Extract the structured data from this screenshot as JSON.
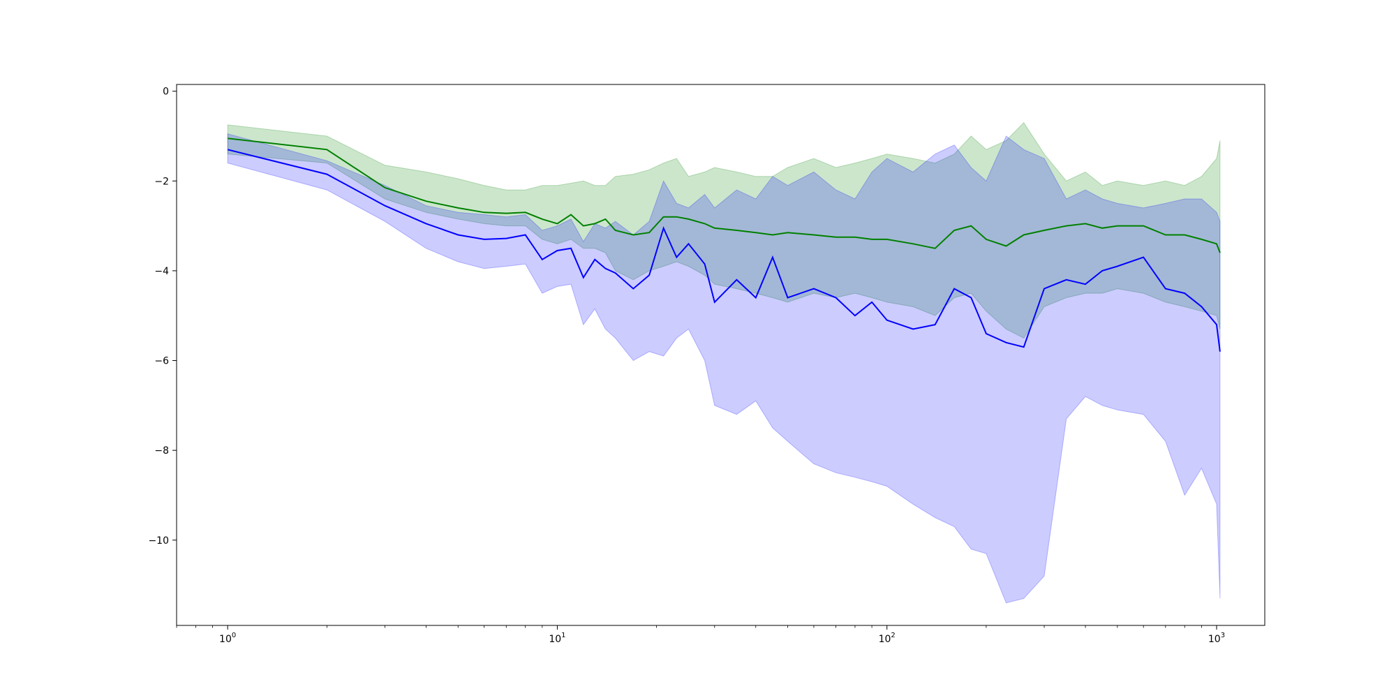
{
  "chart_data": {
    "type": "line",
    "title": "",
    "xlabel": "",
    "ylabel": "",
    "x_scale": "log",
    "xlim": [
      0.7,
      1400
    ],
    "ylim": [
      -11.9,
      0.15
    ],
    "grid": false,
    "legend": "none",
    "x_ticks": [
      {
        "value": 1,
        "base": "10",
        "exp": "0"
      },
      {
        "value": 10,
        "base": "10",
        "exp": "1"
      },
      {
        "value": 100,
        "base": "10",
        "exp": "2"
      },
      {
        "value": 1000,
        "base": "10",
        "exp": "3"
      }
    ],
    "y_ticks": [
      {
        "value": 0,
        "label": "0"
      },
      {
        "value": -2,
        "label": "−2"
      },
      {
        "value": -4,
        "label": "−4"
      },
      {
        "value": -6,
        "label": "−6"
      },
      {
        "value": -8,
        "label": "−8"
      },
      {
        "value": -10,
        "label": "−10"
      }
    ],
    "series": [
      {
        "color": "#008000",
        "band_color": "#008000",
        "x": [
          1,
          2,
          3,
          4,
          5,
          6,
          7,
          8,
          9,
          10,
          11,
          12,
          13,
          14,
          15,
          17,
          19,
          21,
          23,
          25,
          28,
          30,
          35,
          40,
          45,
          50,
          60,
          70,
          80,
          90,
          100,
          120,
          140,
          160,
          180,
          200,
          230,
          260,
          300,
          350,
          400,
          450,
          500,
          600,
          700,
          800,
          900,
          1000,
          1024
        ],
        "mean": [
          -1.05,
          -1.3,
          -2.15,
          -2.45,
          -2.6,
          -2.7,
          -2.72,
          -2.7,
          -2.85,
          -2.95,
          -2.75,
          -3.0,
          -2.95,
          -2.85,
          -3.1,
          -3.2,
          -3.15,
          -2.8,
          -2.8,
          -2.85,
          -2.95,
          -3.05,
          -3.1,
          -3.15,
          -3.2,
          -3.15,
          -3.2,
          -3.25,
          -3.25,
          -3.3,
          -3.3,
          -3.4,
          -3.5,
          -3.1,
          -3.0,
          -3.3,
          -3.45,
          -3.2,
          -3.1,
          -3.0,
          -2.95,
          -3.05,
          -3.0,
          -3.0,
          -3.2,
          -3.2,
          -3.3,
          -3.4,
          -3.6
        ],
        "upper": [
          -0.75,
          -1.0,
          -1.65,
          -1.8,
          -1.95,
          -2.1,
          -2.2,
          -2.2,
          -2.1,
          -2.1,
          -2.05,
          -2.0,
          -2.1,
          -2.1,
          -1.9,
          -1.85,
          -1.75,
          -1.6,
          -1.5,
          -1.9,
          -1.8,
          -1.7,
          -1.8,
          -1.9,
          -1.9,
          -1.7,
          -1.5,
          -1.7,
          -1.6,
          -1.5,
          -1.4,
          -1.5,
          -1.6,
          -1.4,
          -1.0,
          -1.3,
          -1.1,
          -0.7,
          -1.4,
          -2.0,
          -1.8,
          -2.1,
          -2.0,
          -2.1,
          -2.0,
          -2.1,
          -1.9,
          -1.5,
          -1.1
        ],
        "lower": [
          -1.4,
          -1.6,
          -2.4,
          -2.7,
          -2.85,
          -2.95,
          -3.0,
          -3.0,
          -3.3,
          -3.4,
          -3.3,
          -3.5,
          -3.5,
          -3.6,
          -4.0,
          -4.2,
          -4.0,
          -3.9,
          -3.8,
          -3.9,
          -4.1,
          -4.3,
          -4.4,
          -4.5,
          -4.6,
          -4.7,
          -4.5,
          -4.6,
          -4.5,
          -4.6,
          -4.7,
          -4.8,
          -5.0,
          -4.6,
          -4.5,
          -4.9,
          -5.3,
          -5.5,
          -4.8,
          -4.6,
          -4.5,
          -4.5,
          -4.4,
          -4.5,
          -4.7,
          -4.8,
          -4.9,
          -5.0,
          -5.3
        ]
      },
      {
        "color": "#0000ff",
        "band_color": "#0000ff",
        "x": [
          1,
          2,
          3,
          4,
          5,
          6,
          7,
          8,
          9,
          10,
          11,
          12,
          13,
          14,
          15,
          17,
          19,
          21,
          23,
          25,
          28,
          30,
          35,
          40,
          45,
          50,
          60,
          70,
          80,
          90,
          100,
          120,
          140,
          160,
          180,
          200,
          230,
          260,
          300,
          350,
          400,
          450,
          500,
          600,
          700,
          800,
          900,
          1000,
          1024
        ],
        "mean": [
          -1.3,
          -1.85,
          -2.55,
          -2.95,
          -3.2,
          -3.3,
          -3.28,
          -3.2,
          -3.75,
          -3.55,
          -3.5,
          -4.15,
          -3.75,
          -3.95,
          -4.05,
          -4.4,
          -4.1,
          -3.05,
          -3.7,
          -3.4,
          -3.85,
          -4.7,
          -4.2,
          -4.6,
          -3.7,
          -4.6,
          -4.4,
          -4.6,
          -5.0,
          -4.7,
          -5.1,
          -5.3,
          -5.2,
          -4.4,
          -4.6,
          -5.4,
          -5.6,
          -5.7,
          -4.4,
          -4.2,
          -4.3,
          -4.0,
          -3.9,
          -3.7,
          -4.4,
          -4.5,
          -4.8,
          -5.2,
          -5.8
        ],
        "upper": [
          -0.95,
          -1.55,
          -2.1,
          -2.55,
          -2.7,
          -2.75,
          -2.8,
          -2.75,
          -3.1,
          -3.0,
          -2.85,
          -3.35,
          -2.95,
          -3.05,
          -2.9,
          -3.2,
          -2.9,
          -2.0,
          -2.5,
          -2.6,
          -2.3,
          -2.6,
          -2.2,
          -2.4,
          -1.9,
          -2.1,
          -1.8,
          -2.2,
          -2.4,
          -1.8,
          -1.5,
          -1.8,
          -1.4,
          -1.2,
          -1.7,
          -2.0,
          -1.0,
          -1.3,
          -1.5,
          -2.4,
          -2.2,
          -2.4,
          -2.5,
          -2.6,
          -2.5,
          -2.4,
          -2.4,
          -2.7,
          -2.9
        ],
        "lower": [
          -1.6,
          -2.2,
          -2.9,
          -3.5,
          -3.8,
          -3.95,
          -3.9,
          -3.85,
          -4.5,
          -4.35,
          -4.3,
          -5.2,
          -4.85,
          -5.3,
          -5.5,
          -6.0,
          -5.8,
          -5.9,
          -5.5,
          -5.3,
          -6.0,
          -7.0,
          -7.2,
          -6.9,
          -7.5,
          -7.8,
          -8.3,
          -8.5,
          -8.6,
          -8.7,
          -8.8,
          -9.2,
          -9.5,
          -9.7,
          -10.2,
          -10.3,
          -11.4,
          -11.3,
          -10.8,
          -7.3,
          -6.8,
          -7.0,
          -7.1,
          -7.2,
          -7.8,
          -9.0,
          -8.4,
          -9.2,
          -11.3
        ]
      }
    ]
  }
}
